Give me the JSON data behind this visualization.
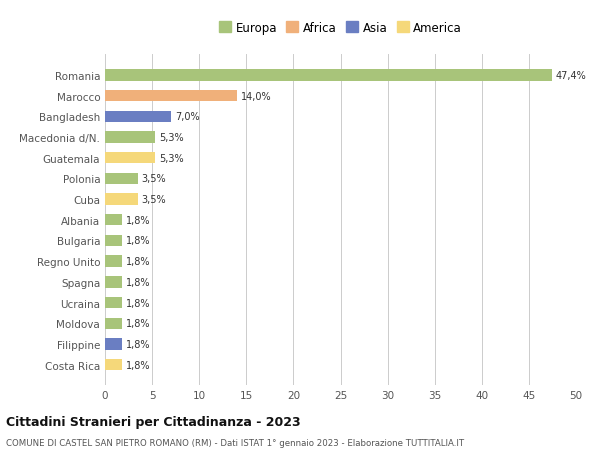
{
  "countries": [
    "Costa Rica",
    "Filippine",
    "Moldova",
    "Ucraina",
    "Spagna",
    "Regno Unito",
    "Bulgaria",
    "Albania",
    "Cuba",
    "Polonia",
    "Guatemala",
    "Macedonia d/N.",
    "Bangladesh",
    "Marocco",
    "Romania"
  ],
  "values": [
    1.8,
    1.8,
    1.8,
    1.8,
    1.8,
    1.8,
    1.8,
    1.8,
    3.5,
    3.5,
    5.3,
    5.3,
    7.0,
    14.0,
    47.4
  ],
  "labels": [
    "1,8%",
    "1,8%",
    "1,8%",
    "1,8%",
    "1,8%",
    "1,8%",
    "1,8%",
    "1,8%",
    "3,5%",
    "3,5%",
    "5,3%",
    "5,3%",
    "7,0%",
    "14,0%",
    "47,4%"
  ],
  "colors": [
    "#f5d87a",
    "#6a7ec2",
    "#a8c47a",
    "#a8c47a",
    "#a8c47a",
    "#a8c47a",
    "#a8c47a",
    "#a8c47a",
    "#f5d87a",
    "#a8c47a",
    "#f5d87a",
    "#a8c47a",
    "#6a7ec2",
    "#f0b07a",
    "#a8c47a"
  ],
  "continent_colors": {
    "Europa": "#a8c47a",
    "Africa": "#f0b07a",
    "Asia": "#6a7ec2",
    "America": "#f5d87a"
  },
  "title": "Cittadini Stranieri per Cittadinanza - 2023",
  "subtitle": "COMUNE DI CASTEL SAN PIETRO ROMANO (RM) - Dati ISTAT 1° gennaio 2023 - Elaborazione TUTTITALIA.IT",
  "xlim": [
    0,
    50
  ],
  "xticks": [
    0,
    5,
    10,
    15,
    20,
    25,
    30,
    35,
    40,
    45,
    50
  ],
  "background_color": "#ffffff",
  "grid_color": "#cccccc",
  "bar_height": 0.55
}
